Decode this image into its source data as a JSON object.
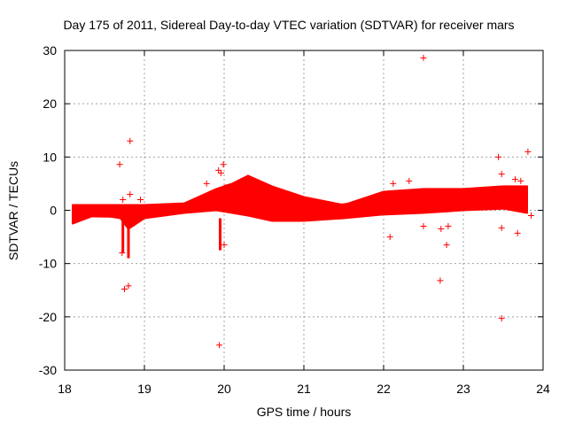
{
  "chart_data": {
    "type": "scatter",
    "title": "Day 175 of 2011, Sidereal Day-to-day VTEC variation (SDTVAR) for receiver mars",
    "xlabel": "GPS time / hours",
    "ylabel": "SDTVAR / TECUs",
    "xlim": [
      18,
      24
    ],
    "ylim": [
      -30,
      30
    ],
    "xticks": [
      18,
      19,
      20,
      21,
      22,
      23,
      24
    ],
    "yticks": [
      -30,
      -20,
      -10,
      0,
      10,
      20,
      30
    ],
    "grid": true,
    "marker": "+",
    "series_color": "#ff0000",
    "band": [
      {
        "x": 18.1,
        "lo": -2.5,
        "hi": 1.0
      },
      {
        "x": 18.4,
        "lo": -0.8,
        "hi": 1.0
      },
      {
        "x": 18.7,
        "lo": -1.5,
        "hi": 1.0
      },
      {
        "x": 18.8,
        "lo": -3.5,
        "hi": 1.0
      },
      {
        "x": 19.0,
        "lo": -1.5,
        "hi": 1.0
      },
      {
        "x": 19.5,
        "lo": -0.5,
        "hi": 1.3
      },
      {
        "x": 19.9,
        "lo": 0.0,
        "hi": 4.0
      },
      {
        "x": 20.1,
        "lo": -0.5,
        "hi": 5.0
      },
      {
        "x": 20.3,
        "lo": -1.0,
        "hi": 6.5
      },
      {
        "x": 20.6,
        "lo": -2.0,
        "hi": 4.5
      },
      {
        "x": 21.0,
        "lo": -2.0,
        "hi": 2.5
      },
      {
        "x": 21.5,
        "lo": -1.5,
        "hi": 1.0
      },
      {
        "x": 22.0,
        "lo": -0.8,
        "hi": 3.5
      },
      {
        "x": 22.5,
        "lo": -0.5,
        "hi": 4.0
      },
      {
        "x": 23.0,
        "lo": 0.0,
        "hi": 4.0
      },
      {
        "x": 23.5,
        "lo": 0.3,
        "hi": 4.5
      },
      {
        "x": 23.8,
        "lo": -0.5,
        "hi": 4.5
      }
    ],
    "lines": [
      [
        [
          18.1,
          -1.0
        ],
        [
          18.8,
          -1.2
        ],
        [
          19.4,
          -0.5
        ],
        [
          20.2,
          0.5
        ],
        [
          21.0,
          0.2
        ],
        [
          21.5,
          0.2
        ],
        [
          22.0,
          1.5
        ],
        [
          22.5,
          2.5
        ],
        [
          23.0,
          1.5
        ],
        [
          23.5,
          1.5
        ],
        [
          23.8,
          1.8
        ]
      ],
      [
        [
          19.3,
          0.5
        ],
        [
          19.7,
          1.0
        ],
        [
          20.0,
          2.0
        ],
        [
          20.4,
          3.5
        ],
        [
          20.7,
          1.5
        ],
        [
          21.2,
          0.5
        ],
        [
          22.0,
          2.0
        ],
        [
          22.6,
          3.0
        ],
        [
          23.2,
          2.5
        ],
        [
          23.8,
          3.0
        ]
      ],
      [
        [
          20.0,
          4.5
        ],
        [
          20.3,
          5.5
        ],
        [
          20.6,
          3.5
        ],
        [
          21.0,
          2.0
        ],
        [
          21.5,
          0.5
        ]
      ]
    ],
    "spikes": [
      {
        "x": 18.8,
        "lo": -9,
        "hi": 0
      },
      {
        "x": 19.95,
        "lo": -7.5,
        "hi": -1.5
      },
      {
        "x": 18.73,
        "lo": -8,
        "hi": -1
      }
    ],
    "points": [
      {
        "x": 18.69,
        "y": 8.6
      },
      {
        "x": 18.82,
        "y": 13.0
      },
      {
        "x": 18.82,
        "y": 3.0
      },
      {
        "x": 18.73,
        "y": 2.0
      },
      {
        "x": 18.75,
        "y": -14.8
      },
      {
        "x": 18.8,
        "y": -14.2
      },
      {
        "x": 18.72,
        "y": -8.0
      },
      {
        "x": 18.95,
        "y": 2.0
      },
      {
        "x": 19.78,
        "y": 5.0
      },
      {
        "x": 19.93,
        "y": 7.5
      },
      {
        "x": 19.96,
        "y": 7.0
      },
      {
        "x": 19.99,
        "y": 8.6
      },
      {
        "x": 19.94,
        "y": -25.3
      },
      {
        "x": 20.0,
        "y": -6.5
      },
      {
        "x": 22.08,
        "y": -5.0
      },
      {
        "x": 22.12,
        "y": 5.0
      },
      {
        "x": 22.5,
        "y": 28.6
      },
      {
        "x": 22.32,
        "y": 5.5
      },
      {
        "x": 22.5,
        "y": -3.0
      },
      {
        "x": 22.71,
        "y": -13.2
      },
      {
        "x": 22.72,
        "y": -3.5
      },
      {
        "x": 22.79,
        "y": -6.5
      },
      {
        "x": 22.81,
        "y": -3.0
      },
      {
        "x": 23.44,
        "y": 10.0
      },
      {
        "x": 23.48,
        "y": 6.8
      },
      {
        "x": 23.48,
        "y": -3.3
      },
      {
        "x": 23.48,
        "y": -20.3
      },
      {
        "x": 23.65,
        "y": 5.8
      },
      {
        "x": 23.68,
        "y": -4.3
      },
      {
        "x": 23.72,
        "y": 5.5
      },
      {
        "x": 23.81,
        "y": 11.0
      },
      {
        "x": 23.85,
        "y": -1.0
      }
    ]
  }
}
